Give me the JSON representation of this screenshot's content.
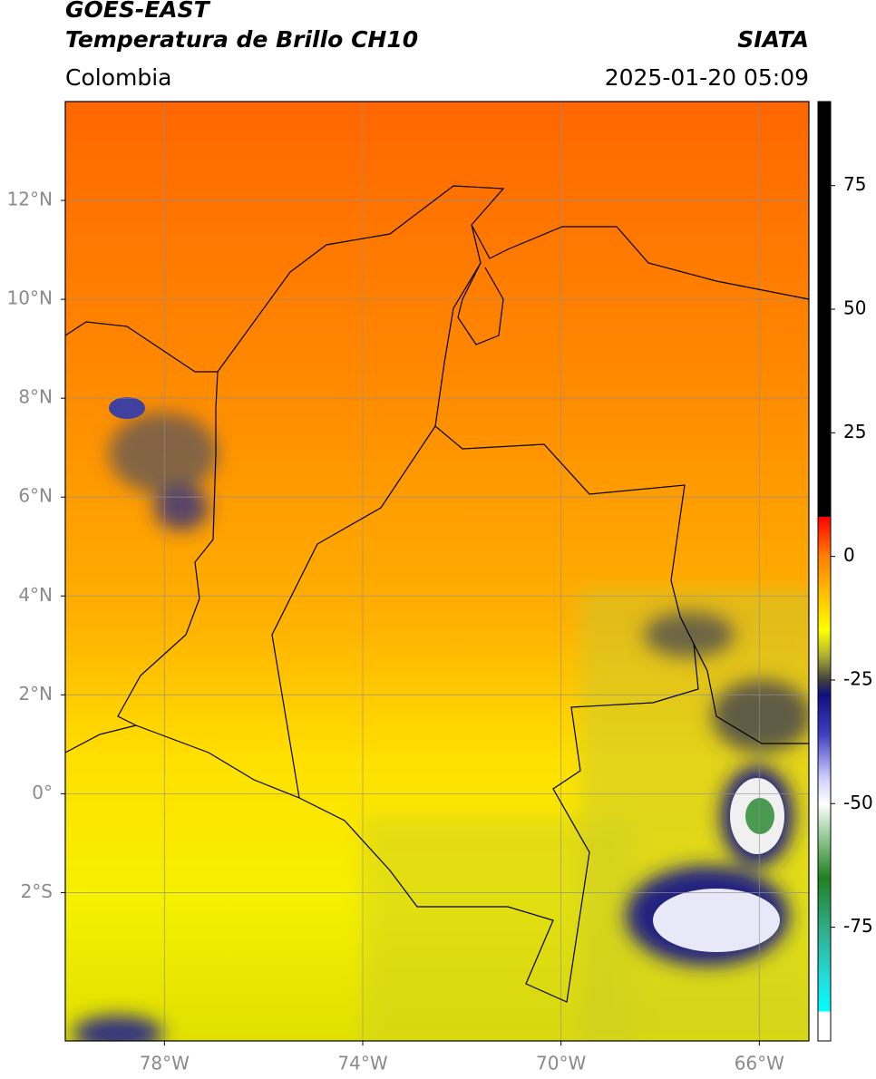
{
  "header": {
    "title": "GOES-EAST",
    "subtitle": "Temperatura de Brillo CH10",
    "region": "Colombia",
    "source": "SIATA",
    "timestamp": "2025-01-20 05:09"
  },
  "map": {
    "lon_range": [
      -80,
      -65
    ],
    "lat_range": [
      -5,
      14
    ],
    "grid": true,
    "lon_ticks": [
      {
        "value": -78,
        "label": "78°W"
      },
      {
        "value": -74,
        "label": "74°W"
      },
      {
        "value": -70,
        "label": "70°W"
      },
      {
        "value": -66,
        "label": "66°W"
      }
    ],
    "lat_ticks": [
      {
        "value": 12,
        "label": "12°N"
      },
      {
        "value": 10,
        "label": "10°N"
      },
      {
        "value": 8,
        "label": "8°N"
      },
      {
        "value": 6,
        "label": "6°N"
      },
      {
        "value": 4,
        "label": "4°N"
      },
      {
        "value": 2,
        "label": "2°N"
      },
      {
        "value": 0,
        "label": "0°"
      },
      {
        "value": -2,
        "label": "2°S"
      }
    ]
  },
  "colorbar": {
    "range": [
      -98,
      92
    ],
    "ticks": [
      75,
      50,
      25,
      0,
      -25,
      -50,
      -75
    ],
    "colors": [
      {
        "value": 92,
        "color": "#000000"
      },
      {
        "value": 8,
        "color": "#000000"
      },
      {
        "value": 8,
        "color": "#ff0000"
      },
      {
        "value": 0,
        "color": "#ff7f00"
      },
      {
        "value": -15,
        "color": "#ffff00"
      },
      {
        "value": -20,
        "color": "#b0b030"
      },
      {
        "value": -25,
        "color": "#404040"
      },
      {
        "value": -28,
        "color": "#101080"
      },
      {
        "value": -36,
        "color": "#4040c0"
      },
      {
        "value": -45,
        "color": "#d0d0ff"
      },
      {
        "value": -50,
        "color": "#ffffff"
      },
      {
        "value": -56,
        "color": "#a0d0a0"
      },
      {
        "value": -65,
        "color": "#208020"
      },
      {
        "value": -76,
        "color": "#30b090"
      },
      {
        "value": -86,
        "color": "#20e0e0"
      },
      {
        "value": -92,
        "color": "#00ffff"
      },
      {
        "value": -92,
        "color": "#ffffff"
      },
      {
        "value": -98,
        "color": "#ffffff"
      }
    ]
  }
}
